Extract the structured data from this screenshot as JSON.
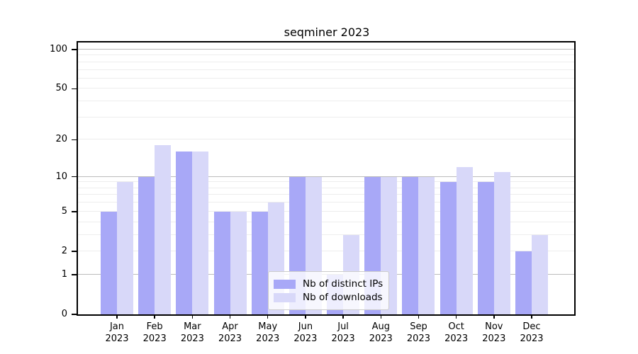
{
  "title": "seqminer 2023",
  "chart_data": {
    "type": "bar",
    "title": "seqminer 2023",
    "categories": [
      "Jan 2023",
      "Feb 2023",
      "Mar 2023",
      "Apr 2023",
      "May 2023",
      "Jun 2023",
      "Jul 2023",
      "Aug 2023",
      "Sep 2023",
      "Oct 2023",
      "Nov 2023",
      "Dec 2023"
    ],
    "series": [
      {
        "name": "Nb of distinct IPs",
        "color": "#a8a8f7",
        "values": [
          5,
          10,
          16,
          5,
          5,
          10,
          1,
          10,
          10,
          9,
          9,
          2
        ]
      },
      {
        "name": "Nb of downloads",
        "color": "#d8d8f9",
        "values": [
          9,
          18,
          16,
          5,
          6,
          10,
          3,
          10,
          10,
          12,
          11,
          3
        ]
      }
    ],
    "xlabel": "",
    "ylabel": "",
    "yscale": "log1p",
    "ylim": [
      0,
      113
    ],
    "yticks": [
      0,
      1,
      2,
      5,
      10,
      20,
      50,
      100
    ],
    "major_gridlines": [
      1,
      10,
      100
    ],
    "minor_gridlines": [
      2,
      3,
      4,
      5,
      6,
      7,
      8,
      9,
      20,
      30,
      40,
      50,
      60,
      70,
      80,
      90
    ],
    "grid": true,
    "legend_position": "lower center"
  },
  "colors": {
    "bar_dark": "#a8a8f7",
    "bar_light": "#d8d8f9",
    "major_grid": "#bbbbbb",
    "minor_grid": "#ededed",
    "axis": "#000000",
    "background": "#ffffff"
  }
}
